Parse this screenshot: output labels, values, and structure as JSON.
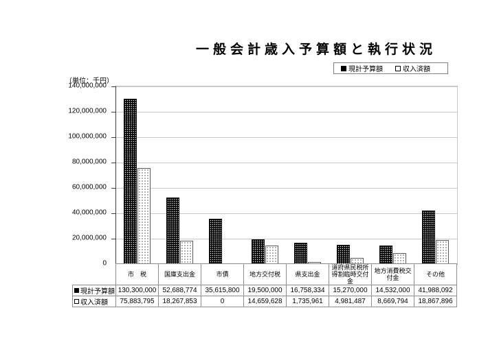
{
  "chart_data": {
    "type": "bar",
    "title": "一般会計歳入予算額と執行状況",
    "unit_label": "（単位：千円）",
    "categories": [
      "市　税",
      "国庫支出金",
      "市債",
      "地方交付税",
      "県支出金",
      "道府県民税所得割臨時交付金",
      "地方消費税交付金",
      "その他"
    ],
    "series": [
      {
        "name": "現計予算額",
        "marker": "filled-square",
        "values": [
          130300000,
          52688774,
          35615800,
          19500000,
          16758334,
          15270000,
          14532000,
          41988092
        ]
      },
      {
        "name": "収入済額",
        "marker": "open-square",
        "values": [
          75883795,
          18267853,
          0,
          14659628,
          1735961,
          4981487,
          8669794,
          18867896
        ]
      }
    ],
    "ylim": [
      0,
      140000000
    ],
    "ytick_interval": 20000000,
    "grid": true,
    "legend_position": "top-right",
    "colors": {
      "series1_fill": "#000000",
      "series1_dots": "#ffffff",
      "series2_fill": "#ffffff",
      "series2_dots": "#000000",
      "gridline": "#c8c8c8",
      "axis": "#808080"
    }
  }
}
